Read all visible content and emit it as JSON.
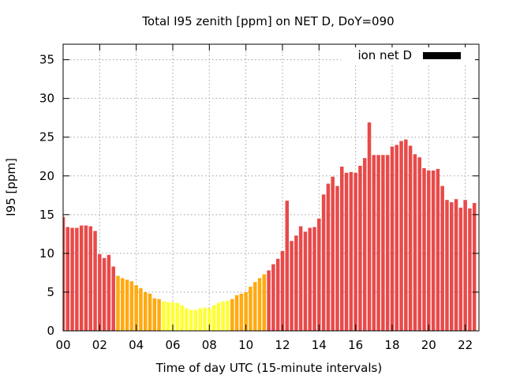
{
  "chart_data": {
    "type": "bar",
    "title": "Total I95 zenith [ppm] on NET D, DoY=090",
    "xlabel": "Time of day UTC (15-minute intervals)",
    "ylabel": "I95 [ppm]",
    "xlim": [
      0,
      22.75
    ],
    "ylim": [
      0,
      37
    ],
    "xticks": [
      "00",
      "02",
      "04",
      "06",
      "08",
      "10",
      "12",
      "14",
      "16",
      "18",
      "20",
      "22"
    ],
    "yticks": [
      "0",
      "5",
      "10",
      "15",
      "20",
      "25",
      "30",
      "35"
    ],
    "grid": true,
    "legend": {
      "position": "top-right",
      "label": "ion net D",
      "color": "#000000"
    },
    "bar_interval_hours": 0.25,
    "colors": {
      "low": "#ffff33",
      "mid": "#ffaa11",
      "high": "#e84a4a"
    },
    "color_thresholds": [
      4,
      7.5
    ],
    "values": [
      14.7,
      13.4,
      13.3,
      13.3,
      13.6,
      13.6,
      13.5,
      12.9,
      9.9,
      9.4,
      9.8,
      8.3,
      7.1,
      6.8,
      6.6,
      6.4,
      5.9,
      5.5,
      5.0,
      4.8,
      4.2,
      4.1,
      3.8,
      3.7,
      3.7,
      3.6,
      3.3,
      2.9,
      2.7,
      2.7,
      2.9,
      3.0,
      2.9,
      3.3,
      3.6,
      3.8,
      3.9,
      4.1,
      4.6,
      4.8,
      5.0,
      5.7,
      6.3,
      6.8,
      7.3,
      7.8,
      8.6,
      9.3,
      10.3,
      16.8,
      11.6,
      12.3,
      13.5,
      12.8,
      13.3,
      13.4,
      14.5,
      17.6,
      19.0,
      19.9,
      18.7,
      21.2,
      20.4,
      20.5,
      20.4,
      21.3,
      22.3,
      26.9,
      22.7,
      22.7,
      22.7,
      22.7,
      23.8,
      24.0,
      24.5,
      24.7,
      23.9,
      22.8,
      22.4,
      21.0,
      20.7,
      20.7,
      20.9,
      18.7,
      16.9,
      16.6,
      17.0,
      15.9,
      16.9,
      15.8,
      16.5
    ]
  }
}
